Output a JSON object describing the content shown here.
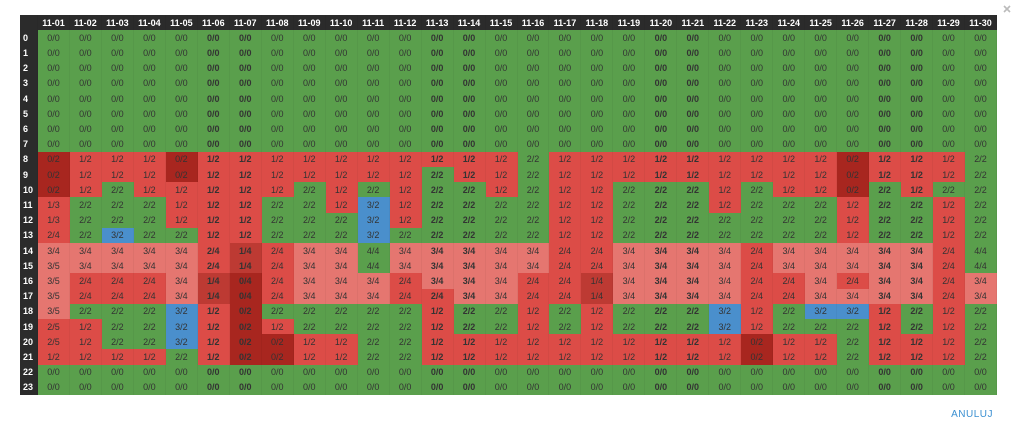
{
  "table": {
    "columns": [
      "11-01",
      "11-02",
      "11-03",
      "11-04",
      "11-05",
      "11-06",
      "11-07",
      "11-08",
      "11-09",
      "11-10",
      "11-11",
      "11-12",
      "11-13",
      "11-14",
      "11-15",
      "11-16",
      "11-17",
      "11-18",
      "11-19",
      "11-20",
      "11-21",
      "11-22",
      "11-23",
      "11-24",
      "11-25",
      "11-26",
      "11-27",
      "11-28",
      "11-29",
      "11-30"
    ],
    "rows": [
      {
        "label": "0",
        "cells": [
          "0/0",
          "0/0",
          "0/0",
          "0/0",
          "0/0",
          "0/0",
          "0/0",
          "0/0",
          "0/0",
          "0/0",
          "0/0",
          "0/0",
          "0/0",
          "0/0",
          "0/0",
          "0/0",
          "0/0",
          "0/0",
          "0/0",
          "0/0",
          "0/0",
          "0/0",
          "0/0",
          "0/0",
          "0/0",
          "0/0",
          "0/0",
          "0/0",
          "0/0",
          "0/0"
        ]
      },
      {
        "label": "1",
        "cells": [
          "0/0",
          "0/0",
          "0/0",
          "0/0",
          "0/0",
          "0/0",
          "0/0",
          "0/0",
          "0/0",
          "0/0",
          "0/0",
          "0/0",
          "0/0",
          "0/0",
          "0/0",
          "0/0",
          "0/0",
          "0/0",
          "0/0",
          "0/0",
          "0/0",
          "0/0",
          "0/0",
          "0/0",
          "0/0",
          "0/0",
          "0/0",
          "0/0",
          "0/0",
          "0/0"
        ]
      },
      {
        "label": "2",
        "cells": [
          "0/0",
          "0/0",
          "0/0",
          "0/0",
          "0/0",
          "0/0",
          "0/0",
          "0/0",
          "0/0",
          "0/0",
          "0/0",
          "0/0",
          "0/0",
          "0/0",
          "0/0",
          "0/0",
          "0/0",
          "0/0",
          "0/0",
          "0/0",
          "0/0",
          "0/0",
          "0/0",
          "0/0",
          "0/0",
          "0/0",
          "0/0",
          "0/0",
          "0/0",
          "0/0"
        ]
      },
      {
        "label": "3",
        "cells": [
          "0/0",
          "0/0",
          "0/0",
          "0/0",
          "0/0",
          "0/0",
          "0/0",
          "0/0",
          "0/0",
          "0/0",
          "0/0",
          "0/0",
          "0/0",
          "0/0",
          "0/0",
          "0/0",
          "0/0",
          "0/0",
          "0/0",
          "0/0",
          "0/0",
          "0/0",
          "0/0",
          "0/0",
          "0/0",
          "0/0",
          "0/0",
          "0/0",
          "0/0",
          "0/0"
        ]
      },
      {
        "label": "4",
        "cells": [
          "0/0",
          "0/0",
          "0/0",
          "0/0",
          "0/0",
          "0/0",
          "0/0",
          "0/0",
          "0/0",
          "0/0",
          "0/0",
          "0/0",
          "0/0",
          "0/0",
          "0/0",
          "0/0",
          "0/0",
          "0/0",
          "0/0",
          "0/0",
          "0/0",
          "0/0",
          "0/0",
          "0/0",
          "0/0",
          "0/0",
          "0/0",
          "0/0",
          "0/0",
          "0/0"
        ]
      },
      {
        "label": "5",
        "cells": [
          "0/0",
          "0/0",
          "0/0",
          "0/0",
          "0/0",
          "0/0",
          "0/0",
          "0/0",
          "0/0",
          "0/0",
          "0/0",
          "0/0",
          "0/0",
          "0/0",
          "0/0",
          "0/0",
          "0/0",
          "0/0",
          "0/0",
          "0/0",
          "0/0",
          "0/0",
          "0/0",
          "0/0",
          "0/0",
          "0/0",
          "0/0",
          "0/0",
          "0/0",
          "0/0"
        ]
      },
      {
        "label": "6",
        "cells": [
          "0/0",
          "0/0",
          "0/0",
          "0/0",
          "0/0",
          "0/0",
          "0/0",
          "0/0",
          "0/0",
          "0/0",
          "0/0",
          "0/0",
          "0/0",
          "0/0",
          "0/0",
          "0/0",
          "0/0",
          "0/0",
          "0/0",
          "0/0",
          "0/0",
          "0/0",
          "0/0",
          "0/0",
          "0/0",
          "0/0",
          "0/0",
          "0/0",
          "0/0",
          "0/0"
        ]
      },
      {
        "label": "7",
        "cells": [
          "0/0",
          "0/0",
          "0/0",
          "0/0",
          "0/0",
          "0/0",
          "0/0",
          "0/0",
          "0/0",
          "0/0",
          "0/0",
          "0/0",
          "0/0",
          "0/0",
          "0/0",
          "0/0",
          "0/0",
          "0/0",
          "0/0",
          "0/0",
          "0/0",
          "0/0",
          "0/0",
          "0/0",
          "0/0",
          "0/0",
          "0/0",
          "0/0",
          "0/0",
          "0/0"
        ]
      },
      {
        "label": "8",
        "cells": [
          "0/2",
          "1/2",
          "1/2",
          "1/2",
          "0/2",
          "1/2",
          "1/2",
          "1/2",
          "1/2",
          "1/2",
          "1/2",
          "1/2",
          "1/2",
          "1/2",
          "1/2",
          "2/2",
          "1/2",
          "1/2",
          "1/2",
          "1/2",
          "1/2",
          "1/2",
          "1/2",
          "1/2",
          "1/2",
          "0/2",
          "1/2",
          "1/2",
          "1/2",
          "2/2"
        ]
      },
      {
        "label": "9",
        "cells": [
          "0/2",
          "1/2",
          "1/2",
          "1/2",
          "0/2",
          "1/2",
          "1/2",
          "1/2",
          "1/2",
          "1/2",
          "1/2",
          "1/2",
          "2/2",
          "1/2",
          "1/2",
          "2/2",
          "1/2",
          "1/2",
          "1/2",
          "1/2",
          "1/2",
          "1/2",
          "1/2",
          "1/2",
          "1/2",
          "0/2",
          "1/2",
          "1/2",
          "1/2",
          "2/2"
        ]
      },
      {
        "label": "10",
        "cells": [
          "0/2",
          "1/2",
          "2/2",
          "1/2",
          "1/2",
          "1/2",
          "1/2",
          "1/2",
          "2/2",
          "1/2",
          "2/2",
          "1/2",
          "2/2",
          "2/2",
          "1/2",
          "2/2",
          "1/2",
          "1/2",
          "2/2",
          "2/2",
          "2/2",
          "1/2",
          "2/2",
          "1/2",
          "1/2",
          "0/2",
          "2/2",
          "1/2",
          "2/2",
          "2/2"
        ]
      },
      {
        "label": "11",
        "cells": [
          "1/3",
          "2/2",
          "2/2",
          "2/2",
          "1/2",
          "1/2",
          "1/2",
          "2/2",
          "2/2",
          "1/2",
          "3/2",
          "1/2",
          "2/2",
          "2/2",
          "2/2",
          "2/2",
          "1/2",
          "1/2",
          "2/2",
          "2/2",
          "2/2",
          "1/2",
          "2/2",
          "2/2",
          "2/2",
          "1/2",
          "2/2",
          "2/2",
          "1/2",
          "2/2"
        ]
      },
      {
        "label": "12",
        "cells": [
          "1/3",
          "2/2",
          "2/2",
          "2/2",
          "1/2",
          "1/2",
          "1/2",
          "2/2",
          "2/2",
          "2/2",
          "3/2",
          "1/2",
          "2/2",
          "2/2",
          "2/2",
          "2/2",
          "1/2",
          "1/2",
          "2/2",
          "2/2",
          "2/2",
          "2/2",
          "2/2",
          "2/2",
          "2/2",
          "1/2",
          "2/2",
          "2/2",
          "1/2",
          "2/2"
        ]
      },
      {
        "label": "13",
        "cells": [
          "2/4",
          "2/2",
          "3/2",
          "2/2",
          "2/2",
          "1/2",
          "1/2",
          "2/2",
          "2/2",
          "2/2",
          "3/2",
          "2/2",
          "2/2",
          "2/2",
          "2/2",
          "2/2",
          "1/2",
          "1/2",
          "2/2",
          "2/2",
          "2/2",
          "2/2",
          "2/2",
          "2/2",
          "2/2",
          "1/2",
          "2/2",
          "2/2",
          "1/2",
          "2/2"
        ]
      },
      {
        "label": "14",
        "cells": [
          "3/4",
          "3/4",
          "3/4",
          "3/4",
          "3/4",
          "2/4",
          "1/4",
          "2/4",
          "3/4",
          "3/4",
          "4/4",
          "3/4",
          "3/4",
          "3/4",
          "3/4",
          "3/4",
          "2/4",
          "2/4",
          "3/4",
          "3/4",
          "3/4",
          "3/4",
          "2/4",
          "3/4",
          "3/4",
          "3/4",
          "3/4",
          "3/4",
          "2/4",
          "4/4"
        ]
      },
      {
        "label": "15",
        "cells": [
          "3/5",
          "3/4",
          "3/4",
          "3/4",
          "3/4",
          "2/4",
          "1/4",
          "2/4",
          "3/4",
          "3/4",
          "4/4",
          "3/4",
          "3/4",
          "3/4",
          "3/4",
          "3/4",
          "2/4",
          "2/4",
          "3/4",
          "3/4",
          "3/4",
          "3/4",
          "2/4",
          "3/4",
          "3/4",
          "3/4",
          "3/4",
          "3/4",
          "2/4",
          "4/4"
        ]
      },
      {
        "label": "16",
        "cells": [
          "3/5",
          "2/4",
          "2/4",
          "2/4",
          "3/4",
          "1/4",
          "0/4",
          "2/4",
          "3/4",
          "3/4",
          "3/4",
          "2/4",
          "3/4",
          "3/4",
          "3/4",
          "2/4",
          "2/4",
          "1/4",
          "3/4",
          "3/4",
          "3/4",
          "3/4",
          "2/4",
          "2/4",
          "3/4",
          "2/4",
          "3/4",
          "3/4",
          "2/4",
          "3/4"
        ]
      },
      {
        "label": "17",
        "cells": [
          "3/5",
          "2/4",
          "2/4",
          "2/4",
          "3/4",
          "1/4",
          "0/4",
          "2/4",
          "3/4",
          "3/4",
          "3/4",
          "2/4",
          "2/4",
          "3/4",
          "3/4",
          "2/4",
          "2/4",
          "1/4",
          "3/4",
          "3/4",
          "3/4",
          "3/4",
          "2/4",
          "2/4",
          "3/4",
          "3/4",
          "3/4",
          "3/4",
          "2/4",
          "3/4"
        ]
      },
      {
        "label": "18",
        "cells": [
          "3/5",
          "2/2",
          "2/2",
          "2/2",
          "3/2",
          "1/2",
          "0/2",
          "2/2",
          "2/2",
          "2/2",
          "2/2",
          "2/2",
          "1/2",
          "2/2",
          "2/2",
          "1/2",
          "2/2",
          "1/2",
          "2/2",
          "2/2",
          "2/2",
          "3/2",
          "1/2",
          "2/2",
          "3/2",
          "3/2",
          "1/2",
          "2/2",
          "1/2",
          "2/2"
        ]
      },
      {
        "label": "19",
        "cells": [
          "2/5",
          "1/2",
          "2/2",
          "2/2",
          "3/2",
          "1/2",
          "0/2",
          "1/2",
          "2/2",
          "2/2",
          "2/2",
          "2/2",
          "1/2",
          "2/2",
          "2/2",
          "1/2",
          "2/2",
          "1/2",
          "2/2",
          "2/2",
          "2/2",
          "3/2",
          "1/2",
          "2/2",
          "2/2",
          "2/2",
          "1/2",
          "2/2",
          "1/2",
          "2/2"
        ]
      },
      {
        "label": "20",
        "cells": [
          "2/5",
          "1/2",
          "2/2",
          "2/2",
          "3/2",
          "1/2",
          "0/2",
          "0/2",
          "1/2",
          "1/2",
          "2/2",
          "2/2",
          "1/2",
          "1/2",
          "1/2",
          "1/2",
          "1/2",
          "1/2",
          "1/2",
          "1/2",
          "1/2",
          "1/2",
          "0/2",
          "1/2",
          "1/2",
          "2/2",
          "1/2",
          "1/2",
          "1/2",
          "2/2"
        ]
      },
      {
        "label": "21",
        "cells": [
          "1/2",
          "1/2",
          "1/2",
          "1/2",
          "2/2",
          "1/2",
          "0/2",
          "0/2",
          "1/2",
          "1/2",
          "2/2",
          "2/2",
          "1/2",
          "1/2",
          "1/2",
          "1/2",
          "1/2",
          "1/2",
          "1/2",
          "1/2",
          "1/2",
          "1/2",
          "0/2",
          "1/2",
          "1/2",
          "2/2",
          "1/2",
          "1/2",
          "1/2",
          "2/2"
        ]
      },
      {
        "label": "22",
        "cells": [
          "0/0",
          "0/0",
          "0/0",
          "0/0",
          "0/0",
          "0/0",
          "0/0",
          "0/0",
          "0/0",
          "0/0",
          "0/0",
          "0/0",
          "0/0",
          "0/0",
          "0/0",
          "0/0",
          "0/0",
          "0/0",
          "0/0",
          "0/0",
          "0/0",
          "0/0",
          "0/0",
          "0/0",
          "0/0",
          "0/0",
          "0/0",
          "0/0",
          "0/0",
          "0/0"
        ]
      },
      {
        "label": "23",
        "cells": [
          "0/0",
          "0/0",
          "0/0",
          "0/0",
          "0/0",
          "0/0",
          "0/0",
          "0/0",
          "0/0",
          "0/0",
          "0/0",
          "0/0",
          "0/0",
          "0/0",
          "0/0",
          "0/0",
          "0/0",
          "0/0",
          "0/0",
          "0/0",
          "0/0",
          "0/0",
          "0/0",
          "0/0",
          "0/0",
          "0/0",
          "0/0",
          "0/0",
          "0/0",
          "0/0"
        ]
      }
    ]
  },
  "footer": {
    "button": "ANULUJ"
  }
}
